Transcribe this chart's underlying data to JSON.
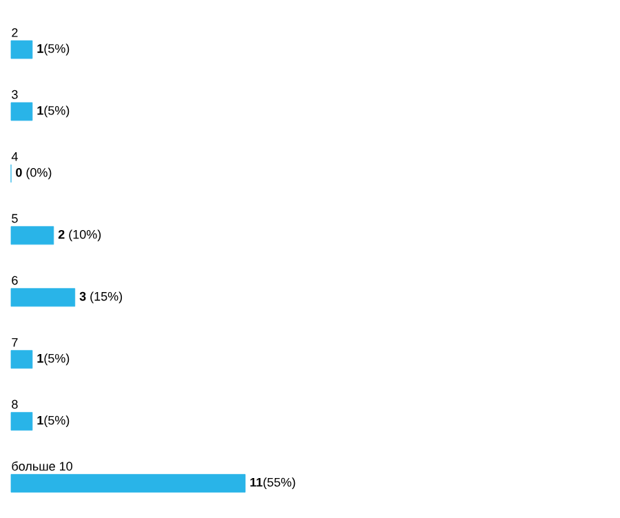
{
  "chart_data": {
    "type": "bar",
    "orientation": "horizontal",
    "color": "#29b4e8",
    "categories": [
      "2",
      "3",
      "4",
      "5",
      "6",
      "7",
      "8",
      "больше 10"
    ],
    "values": [
      1,
      1,
      0,
      2,
      3,
      1,
      1,
      11
    ],
    "value_labels": [
      "**1**(5%)",
      "**1**(5%)",
      "**0** (0%)",
      "**2** (10%)",
      "**3** (15%)",
      "**1**(5%)",
      "**1**(5%)",
      "**11**(55%)"
    ]
  }
}
